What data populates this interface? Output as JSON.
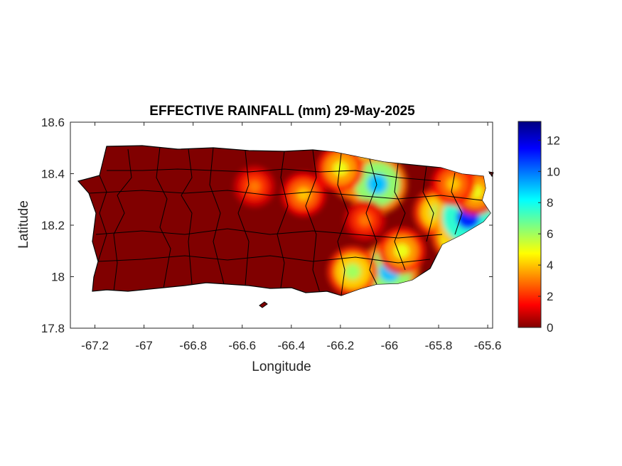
{
  "chart_data": {
    "type": "heatmap",
    "title": "EFFECTIVE RAINFALL (mm) 29-May-2025",
    "xlabel": "Longitude",
    "ylabel": "Latitude",
    "xlim": [
      -67.3,
      -65.58
    ],
    "ylim": [
      17.8,
      18.6
    ],
    "x_ticks": [
      "-67.2",
      "-67",
      "-66.8",
      "-66.6",
      "-66.4",
      "-66.2",
      "-66",
      "-65.8",
      "-65.6"
    ],
    "x_tick_values": [
      -67.2,
      -67.0,
      -66.8,
      -66.6,
      -66.4,
      -66.2,
      -66.0,
      -65.8,
      -65.6
    ],
    "y_ticks": [
      "17.8",
      "18",
      "18.2",
      "18.4",
      "18.6"
    ],
    "y_tick_values": [
      17.8,
      18.0,
      18.2,
      18.4,
      18.6
    ],
    "colorbar": {
      "colormap": "jet",
      "range": [
        0,
        13.2
      ],
      "ticks": [
        "0",
        "2",
        "4",
        "6",
        "8",
        "10",
        "12"
      ],
      "tick_values": [
        0,
        2,
        4,
        6,
        8,
        10,
        12
      ]
    },
    "background_value_mm": 0,
    "rain_areas": [
      {
        "lon": -66.13,
        "lat": 18.4,
        "mm": 8
      },
      {
        "lon": -66.05,
        "lat": 18.36,
        "mm": 9
      },
      {
        "lon": -66.2,
        "lat": 18.42,
        "mm": 5
      },
      {
        "lon": -66.35,
        "lat": 18.32,
        "mm": 4
      },
      {
        "lon": -66.55,
        "lat": 18.35,
        "mm": 3
      },
      {
        "lon": -66.1,
        "lat": 18.22,
        "mm": 3
      },
      {
        "lon": -66.0,
        "lat": 18.02,
        "mm": 9
      },
      {
        "lon": -66.15,
        "lat": 18.02,
        "mm": 6
      },
      {
        "lon": -65.95,
        "lat": 18.1,
        "mm": 5
      },
      {
        "lon": -65.8,
        "lat": 18.25,
        "mm": 6
      },
      {
        "lon": -65.72,
        "lat": 18.16,
        "mm": 7
      },
      {
        "lon": -65.68,
        "lat": 18.23,
        "mm": 11
      },
      {
        "lon": -65.65,
        "lat": 18.33,
        "mm": 5
      },
      {
        "lon": -65.74,
        "lat": 18.36,
        "mm": 4
      }
    ],
    "grid": false
  }
}
